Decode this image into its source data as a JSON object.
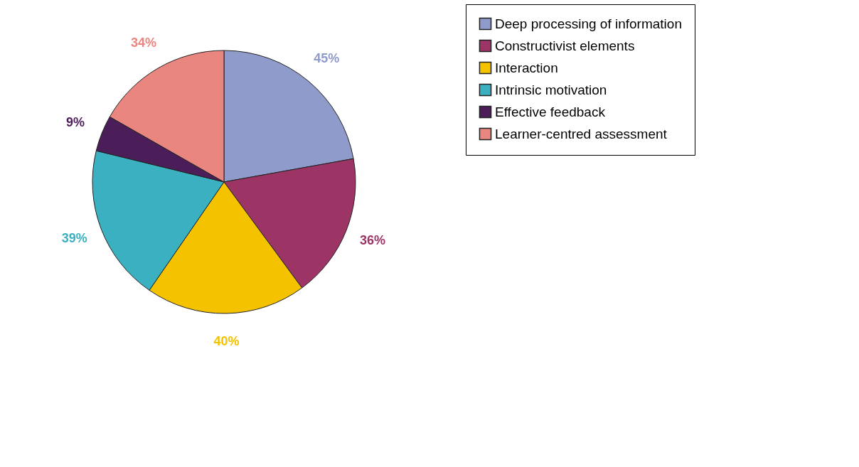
{
  "chart_data": {
    "type": "pie",
    "categories": [
      "Deep processing of information",
      "Constructivist elements",
      "Interaction",
      "Intrinsic motivation",
      "Effective feedback",
      "Learner-centred assessment"
    ],
    "values": [
      45,
      36,
      40,
      39,
      9,
      34
    ],
    "colors": [
      "#8f9bcb",
      "#9c3566",
      "#f5c200",
      "#3bb0c1",
      "#4b1e5a",
      "#ea8680"
    ],
    "value_labels": [
      "45%",
      "36%",
      "40%",
      "39%",
      "9%",
      "34%"
    ],
    "legend": "right"
  }
}
